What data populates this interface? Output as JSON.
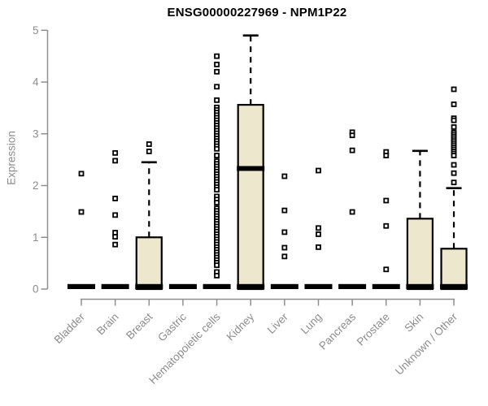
{
  "chart_data": {
    "type": "boxplot",
    "title": "ENSG00000227969 - NPM1P22",
    "ylabel": "Expression",
    "xlabel": "",
    "ylim": [
      0,
      5
    ],
    "yticks": [
      0,
      1,
      2,
      3,
      4,
      5
    ],
    "grid": false,
    "legend": "none",
    "box_fill": "#EDE8CD",
    "box_stroke": "#000000",
    "axis_color": "#8f8f8f",
    "text_color": "#8c8c8c",
    "title_color": "#000000",
    "categories": [
      "Bladder",
      "Brain",
      "Breast",
      "Gastric",
      "Hematopoietic cells",
      "Kidney",
      "Liver",
      "Lung",
      "Pancreas",
      "Prostate",
      "Skin",
      "Unknown / Other"
    ],
    "series": [
      {
        "name": "Bladder",
        "q1": 0,
        "median": 0,
        "q3": 0,
        "whisker_low": 0,
        "whisker_high": 0,
        "outliers": [
          2.23,
          1.49
        ]
      },
      {
        "name": "Brain",
        "q1": 0,
        "median": 0,
        "q3": 0,
        "whisker_low": 0,
        "whisker_high": 0,
        "outliers": [
          2.63,
          2.48,
          1.75,
          1.43,
          1.09,
          1.01,
          0.86
        ]
      },
      {
        "name": "Breast",
        "q1": 0,
        "median": 0,
        "q3": 1.0,
        "whisker_low": 0,
        "whisker_high": 2.45,
        "outliers": [
          2.8,
          2.66
        ]
      },
      {
        "name": "Gastric",
        "q1": 0,
        "median": 0,
        "q3": 0,
        "whisker_low": 0,
        "whisker_high": 0,
        "outliers": []
      },
      {
        "name": "Hematopoietic cells",
        "q1": 0,
        "median": 0,
        "q3": 0,
        "whisker_low": 0,
        "whisker_high": 0,
        "outliers": [
          4.5,
          4.34,
          4.2,
          3.91,
          3.65,
          3.51,
          3.46,
          3.41,
          3.36,
          3.31,
          3.26,
          3.21,
          3.16,
          3.11,
          3.06,
          3.01,
          2.96,
          2.91,
          2.86,
          2.81,
          2.76,
          2.71,
          2.58,
          2.47,
          2.42,
          2.37,
          2.32,
          2.27,
          2.22,
          2.17,
          2.12,
          2.07,
          2.02,
          1.97,
          1.92,
          1.79,
          1.73,
          1.67,
          1.56,
          1.51,
          1.46,
          1.41,
          1.36,
          1.31,
          1.26,
          1.21,
          1.16,
          1.11,
          1.06,
          1.01,
          0.96,
          0.91,
          0.86,
          0.81,
          0.76,
          0.71,
          0.66,
          0.61,
          0.56,
          0.51,
          0.46,
          0.33,
          0.26
        ]
      },
      {
        "name": "Kidney",
        "q1": 0,
        "median": 2.33,
        "q3": 3.56,
        "whisker_low": 0,
        "whisker_high": 4.9,
        "outliers": []
      },
      {
        "name": "Liver",
        "q1": 0,
        "median": 0,
        "q3": 0,
        "whisker_low": 0,
        "whisker_high": 0,
        "outliers": [
          2.18,
          1.52,
          1.1,
          0.8,
          0.63
        ]
      },
      {
        "name": "Lung",
        "q1": 0,
        "median": 0,
        "q3": 0,
        "whisker_low": 0,
        "whisker_high": 0,
        "outliers": [
          2.29,
          1.18,
          1.06,
          0.81
        ]
      },
      {
        "name": "Pancreas",
        "q1": 0,
        "median": 0,
        "q3": 0,
        "whisker_low": 0,
        "whisker_high": 0,
        "outliers": [
          3.03,
          2.97,
          2.68,
          1.49
        ]
      },
      {
        "name": "Prostate",
        "q1": 0,
        "median": 0,
        "q3": 0,
        "whisker_low": 0,
        "whisker_high": 0,
        "outliers": [
          2.65,
          2.58,
          1.71,
          1.22,
          0.38
        ]
      },
      {
        "name": "Skin",
        "q1": 0,
        "median": 0,
        "q3": 1.36,
        "whisker_low": 0,
        "whisker_high": 2.67,
        "outliers": []
      },
      {
        "name": "Unknown / Other",
        "q1": 0,
        "median": 0,
        "q3": 0.78,
        "whisker_low": 0,
        "whisker_high": 1.95,
        "outliers": [
          3.86,
          3.57,
          3.3,
          3.26,
          3.13,
          3.02,
          2.98,
          2.94,
          2.9,
          2.86,
          2.82,
          2.78,
          2.74,
          2.7,
          2.66,
          2.62,
          2.58,
          2.4,
          2.24,
          2.06
        ]
      }
    ]
  }
}
